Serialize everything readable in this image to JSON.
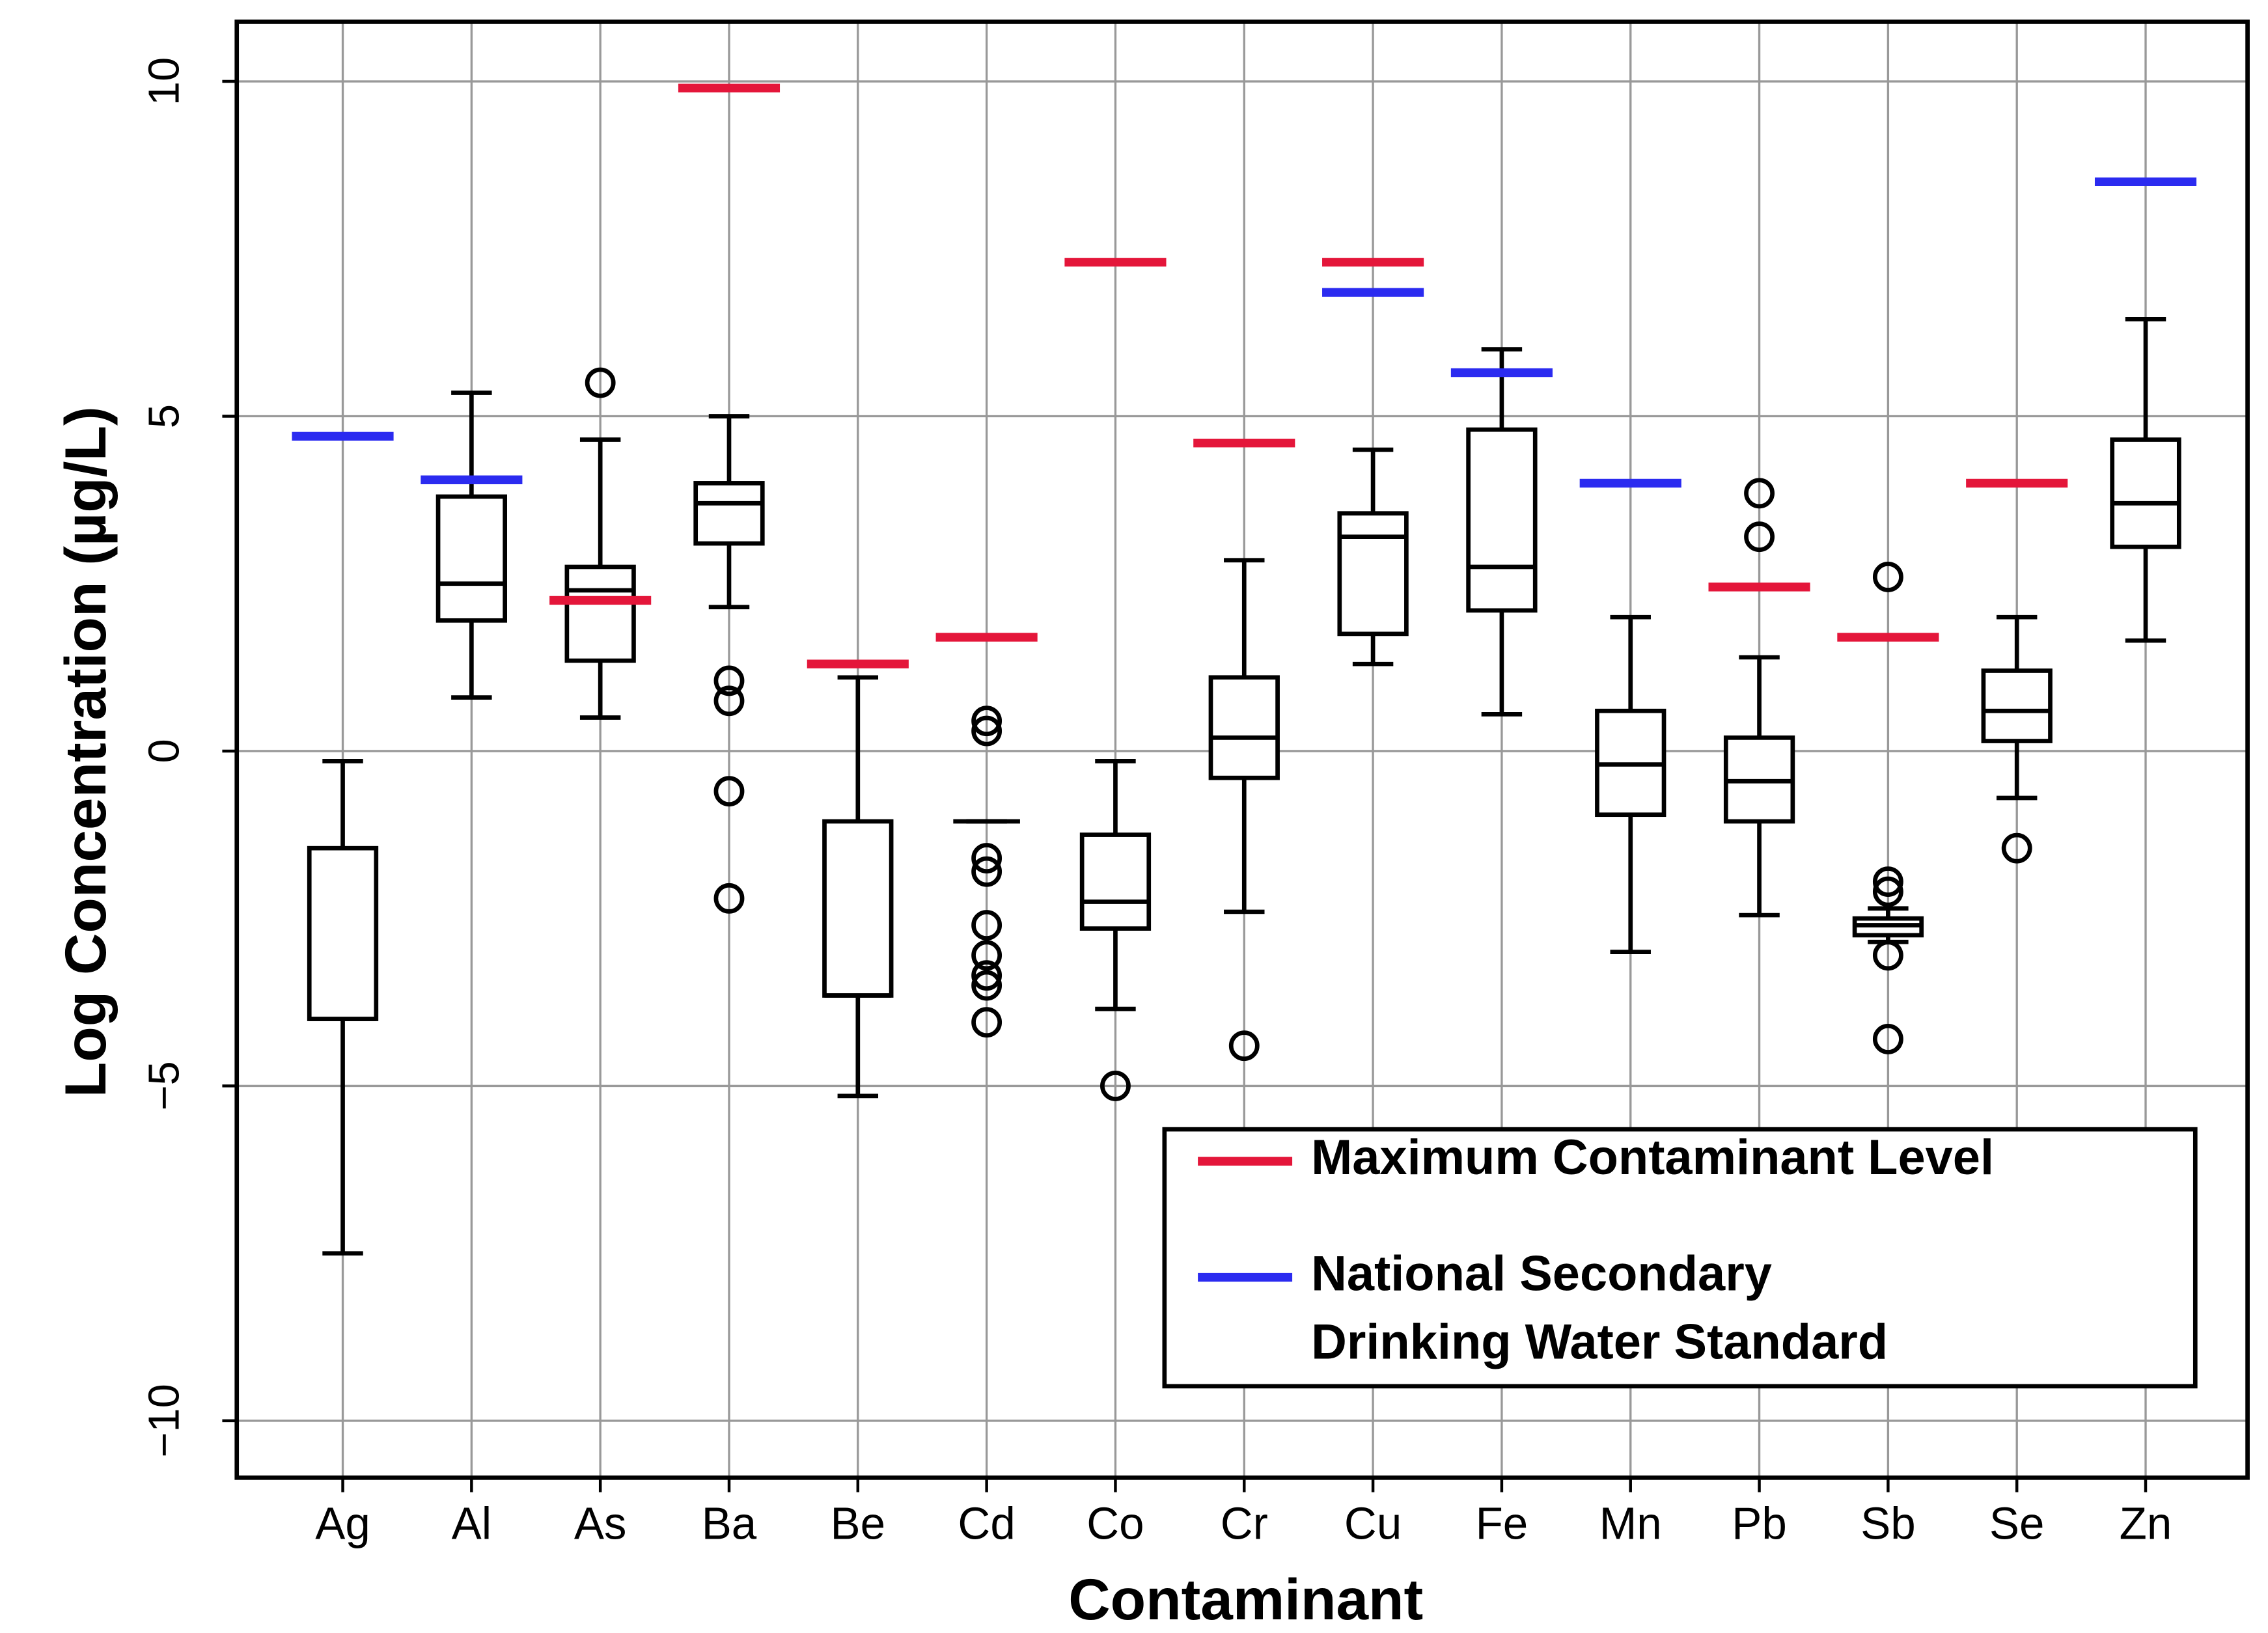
{
  "chart_data": {
    "type": "box",
    "xlabel": "Contaminant",
    "ylabel": "Log Concentration (µg/L)",
    "categories": [
      "Ag",
      "Al",
      "As",
      "Ba",
      "Be",
      "Cd",
      "Co",
      "Cr",
      "Cu",
      "Fe",
      "Mn",
      "Pb",
      "Sb",
      "Se",
      "Zn"
    ],
    "ylim": [
      -10.85,
      10.89
    ],
    "yticks": [
      {
        "value": -10,
        "label": "−10"
      },
      {
        "value": -5,
        "label": "−5"
      },
      0,
      5,
      10
    ],
    "grid": true,
    "legend": "lower right",
    "box_color": "#000000",
    "boxes": [
      {
        "min": -7.5,
        "q1": -4.0,
        "median": -4.0,
        "q3": -1.45,
        "max": -0.15,
        "outliers": []
      },
      {
        "min": 0.8,
        "q1": 1.95,
        "median": 2.5,
        "q3": 3.8,
        "max": 5.35,
        "outliers": []
      },
      {
        "min": 0.5,
        "q1": 1.35,
        "median": 2.4,
        "q3": 2.75,
        "max": 4.65,
        "outliers": [
          5.5
        ]
      },
      {
        "min": 2.15,
        "q1": 3.1,
        "median": 3.7,
        "q3": 4.0,
        "max": 5.0,
        "outliers": [
          1.05,
          0.75,
          -0.6,
          -2.2
        ]
      },
      {
        "min": -5.15,
        "q1": -3.65,
        "median": -3.65,
        "q3": -1.05,
        "max": 1.1,
        "outliers": []
      },
      {
        "min": -1.05,
        "q1": -1.05,
        "median": -1.05,
        "q3": -1.05,
        "max": -1.05,
        "outliers": [
          0.45,
          0.3,
          -1.6,
          -1.8,
          -2.6,
          -3.05,
          -3.35,
          -3.5,
          -4.05
        ]
      },
      {
        "min": -3.85,
        "q1": -2.65,
        "median": -2.25,
        "q3": -1.25,
        "max": -0.15,
        "outliers": [
          -5.0
        ]
      },
      {
        "min": -2.4,
        "q1": -0.4,
        "median": 0.2,
        "q3": 1.1,
        "max": 2.85,
        "outliers": [
          -4.4
        ]
      },
      {
        "min": 1.3,
        "q1": 1.75,
        "median": 3.2,
        "q3": 3.55,
        "max": 4.5,
        "outliers": []
      },
      {
        "min": 0.55,
        "q1": 2.1,
        "median": 2.75,
        "q3": 4.8,
        "max": 6.0,
        "outliers": []
      },
      {
        "min": -3.0,
        "q1": -0.95,
        "median": -0.2,
        "q3": 0.6,
        "max": 2.0,
        "outliers": []
      },
      {
        "min": -2.45,
        "q1": -1.05,
        "median": -0.45,
        "q3": 0.2,
        "max": 1.4,
        "outliers": [
          3.85,
          3.2
        ]
      },
      {
        "min": -2.85,
        "q1": -2.75,
        "median": -2.6,
        "q3": -2.5,
        "max": -2.35,
        "outliers": [
          2.6,
          -1.95,
          -2.1,
          -3.05,
          -4.3
        ]
      },
      {
        "min": -0.7,
        "q1": 0.15,
        "median": 0.6,
        "q3": 1.2,
        "max": 2.0,
        "outliers": [
          -1.45
        ]
      },
      {
        "min": 1.65,
        "q1": 3.05,
        "median": 3.7,
        "q3": 4.65,
        "max": 6.45,
        "outliers": []
      }
    ],
    "series": [
      {
        "name": [
          "Maximum Contaminant Level"
        ],
        "color": "#e4163a",
        "values": [
          null,
          null,
          2.25,
          9.9,
          1.3,
          1.7,
          7.3,
          4.6,
          7.3,
          null,
          null,
          2.45,
          1.7,
          4.0,
          null
        ]
      },
      {
        "name": [
          "National Secondary",
          "Drinking Water Standard"
        ],
        "color": "#2b2bf0",
        "values": [
          4.7,
          4.05,
          null,
          null,
          null,
          null,
          null,
          null,
          6.85,
          5.65,
          4.0,
          null,
          null,
          null,
          8.5
        ]
      }
    ]
  }
}
